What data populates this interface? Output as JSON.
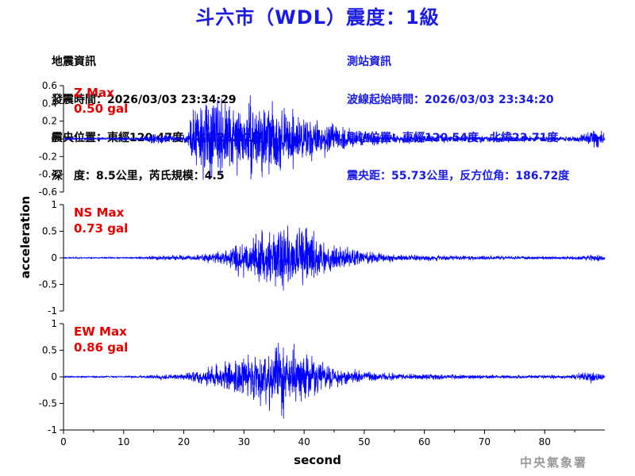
{
  "header": {
    "title": "斗六市（WDL）震度：1級"
  },
  "quake_info": {
    "heading": "地震資訊",
    "origin_time": "發震時間：2026/03/03 23:34:29",
    "epicenter": "震央位置：東經120.47度，北緯23.22度",
    "depth_magnitude": "深　度：8.5公里，芮氏規模：4.5"
  },
  "station_info": {
    "heading": "測站資訊",
    "wave_start": "波線起始時間：2026/03/03 23:34:20",
    "location": "測站位置：東經120.54度，北緯23.71度",
    "distance": "震央距：55.73公里，反方位角：186.72度"
  },
  "footer": {
    "xlabel": "second",
    "ylabel": "acceleration",
    "agency": "中央氣象署"
  },
  "chart_data": {
    "type": "line",
    "x": {
      "label": "second",
      "lim": [
        0,
        90
      ],
      "ticks": [
        0,
        10,
        20,
        30,
        40,
        50,
        60,
        70,
        80
      ],
      "tick_labels": [
        "0",
        "10",
        "20",
        "30",
        "40",
        "50",
        "60",
        "70",
        "80"
      ]
    },
    "ylabel": "acceleration",
    "line_color": "#0000ff",
    "panels": [
      {
        "name": "Z",
        "max_label": "Z Max",
        "max_value": "0.50 gal",
        "ylim": [
          -0.6,
          0.6
        ],
        "ticks": [
          -0.6,
          -0.4,
          -0.2,
          0,
          0.2,
          0.4,
          0.6
        ],
        "tick_labels": [
          "-0.6",
          "-0.4",
          "-0.2",
          "0",
          "0.2",
          "0.4",
          "0.6"
        ],
        "envelope": [
          [
            0,
            0.012
          ],
          [
            13,
            0.018
          ],
          [
            14.5,
            0.07
          ],
          [
            17,
            0.05
          ],
          [
            19,
            0.025
          ],
          [
            20.5,
            0.05
          ],
          [
            21.5,
            0.36
          ],
          [
            24,
            0.42
          ],
          [
            27,
            0.36
          ],
          [
            30,
            0.32
          ],
          [
            33,
            0.4
          ],
          [
            36,
            0.3
          ],
          [
            40,
            0.25
          ],
          [
            44,
            0.15
          ],
          [
            48,
            0.09
          ],
          [
            55,
            0.05
          ],
          [
            65,
            0.035
          ],
          [
            75,
            0.028
          ],
          [
            85,
            0.03
          ],
          [
            87,
            0.07
          ],
          [
            88.5,
            0.13
          ],
          [
            89.5,
            0.08
          ],
          [
            90,
            0.04
          ]
        ],
        "seed": 11
      },
      {
        "name": "NS",
        "max_label": "NS Max",
        "max_value": "0.73 gal",
        "ylim": [
          -1,
          1
        ],
        "ticks": [
          -1,
          -0.5,
          0,
          0.5,
          1
        ],
        "tick_labels": [
          "-1",
          "-0.5",
          "0",
          "0.5",
          "1"
        ],
        "envelope": [
          [
            0,
            0.01
          ],
          [
            12,
            0.012
          ],
          [
            15,
            0.04
          ],
          [
            20,
            0.04
          ],
          [
            23,
            0.06
          ],
          [
            27,
            0.13
          ],
          [
            29,
            0.3
          ],
          [
            33,
            0.42
          ],
          [
            36,
            0.48
          ],
          [
            39,
            0.5
          ],
          [
            40.5,
            0.62
          ],
          [
            43,
            0.3
          ],
          [
            46,
            0.22
          ],
          [
            50,
            0.12
          ],
          [
            56,
            0.06
          ],
          [
            65,
            0.04
          ],
          [
            75,
            0.03
          ],
          [
            85,
            0.03
          ],
          [
            89,
            0.06
          ],
          [
            90,
            0.03
          ]
        ],
        "seed": 23
      },
      {
        "name": "EW",
        "max_label": "EW Max",
        "max_value": "0.86 gal",
        "ylim": [
          -1,
          1
        ],
        "ticks": [
          -1,
          -0.5,
          0,
          0.5,
          1
        ],
        "tick_labels": [
          "-1",
          "-0.5",
          "0",
          "0.5",
          "1"
        ],
        "envelope": [
          [
            0,
            0.01
          ],
          [
            12,
            0.015
          ],
          [
            16,
            0.05
          ],
          [
            19,
            0.04
          ],
          [
            21,
            0.08
          ],
          [
            24,
            0.17
          ],
          [
            27,
            0.24
          ],
          [
            30,
            0.36
          ],
          [
            33,
            0.45
          ],
          [
            35.5,
            0.7
          ],
          [
            37,
            0.55
          ],
          [
            40,
            0.42
          ],
          [
            44,
            0.22
          ],
          [
            48,
            0.12
          ],
          [
            55,
            0.06
          ],
          [
            65,
            0.04
          ],
          [
            75,
            0.03
          ],
          [
            84,
            0.03
          ],
          [
            88,
            0.1
          ],
          [
            89.5,
            0.05
          ],
          [
            90,
            0.03
          ]
        ],
        "seed": 37
      }
    ]
  }
}
